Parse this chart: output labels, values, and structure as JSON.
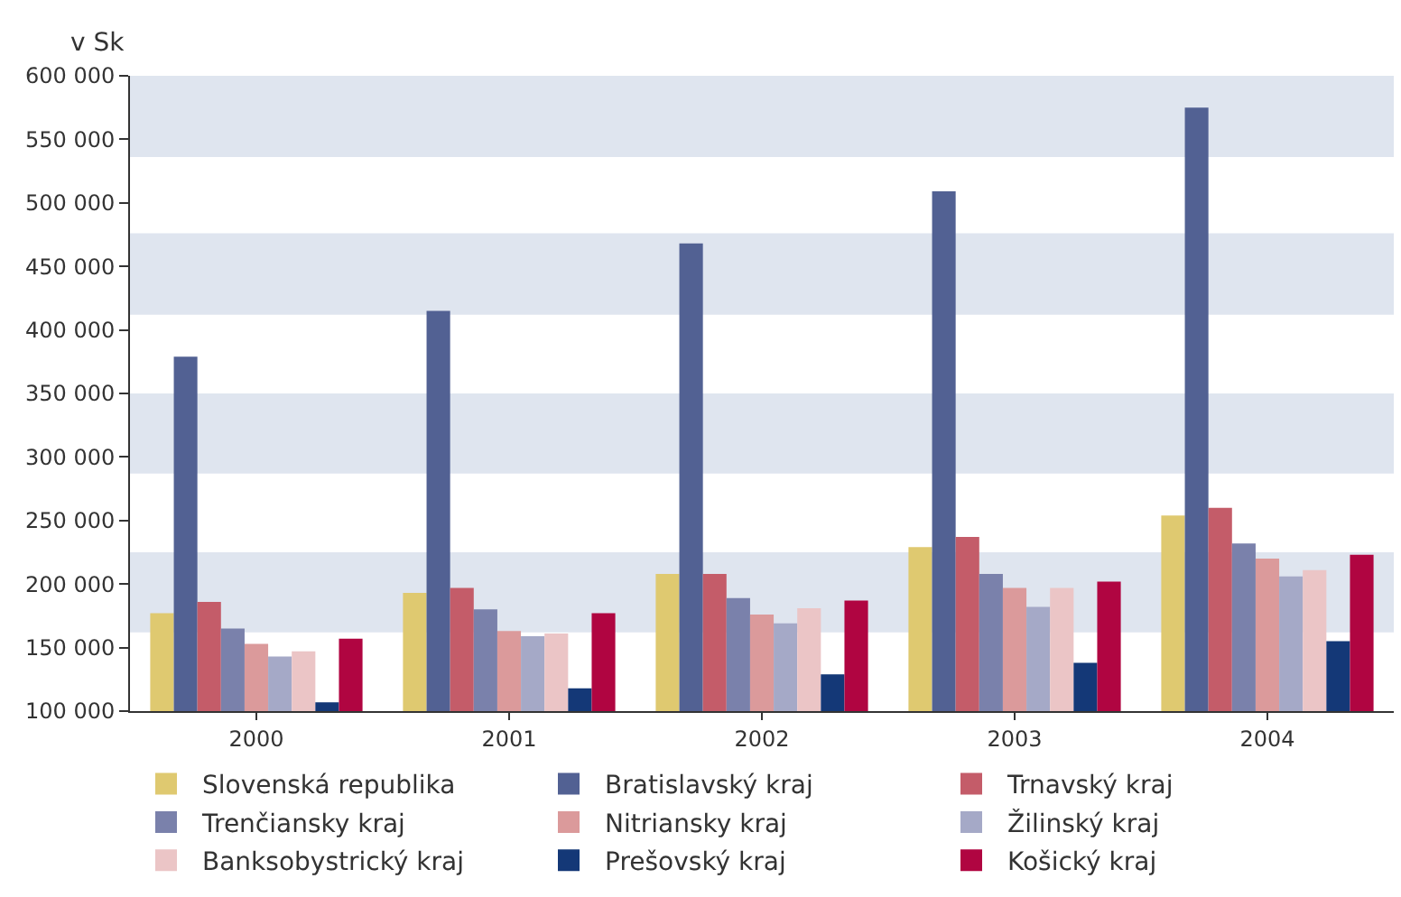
{
  "chart_data": {
    "type": "bar",
    "ylabel": "v Sk",
    "categories": [
      "2000",
      "2001",
      "2002",
      "2003",
      "2004"
    ],
    "series": [
      {
        "name": "Slovenská republika",
        "color": "#dfc970",
        "values": [
          177000,
          193000,
          208000,
          229000,
          254000
        ]
      },
      {
        "name": "Bratislavský kraj",
        "color": "#526193",
        "values": [
          379000,
          415000,
          468000,
          509000,
          575000
        ]
      },
      {
        "name": "Trnavský kraj",
        "color": "#c45c69",
        "values": [
          186000,
          197000,
          208000,
          237000,
          260000
        ]
      },
      {
        "name": "Trenčiansky kraj",
        "color": "#7a81ab",
        "values": [
          165000,
          180000,
          189000,
          208000,
          232000
        ]
      },
      {
        "name": "Nitriansky kraj",
        "color": "#db9a9b",
        "values": [
          153000,
          163000,
          176000,
          197000,
          220000
        ]
      },
      {
        "name": "Žilinský kraj",
        "color": "#a5a9c7",
        "values": [
          143000,
          159000,
          169000,
          182000,
          206000
        ]
      },
      {
        "name": "Banksobystrický kraj",
        "color": "#ebc5c6",
        "values": [
          147000,
          161000,
          181000,
          197000,
          211000
        ]
      },
      {
        "name": "Prešovský kraj",
        "color": "#143877",
        "values": [
          107000,
          118000,
          129000,
          138000,
          155000
        ]
      },
      {
        "name": "Košický kraj",
        "color": "#b00541",
        "values": [
          157000,
          177000,
          187000,
          202000,
          223000
        ]
      }
    ],
    "ylim": [
      100000,
      600000
    ],
    "yticks": [
      {
        "value": 100000,
        "label": "100 000"
      },
      {
        "value": 150000,
        "label": "150 000"
      },
      {
        "value": 200000,
        "label": "200 000"
      },
      {
        "value": 250000,
        "label": "250 000"
      },
      {
        "value": 300000,
        "label": "300 000"
      },
      {
        "value": 350000,
        "label": "350 000"
      },
      {
        "value": 400000,
        "label": "400 000"
      },
      {
        "value": 450000,
        "label": "450 000"
      },
      {
        "value": 500000,
        "label": "500 000"
      },
      {
        "value": 550000,
        "label": "550 000"
      },
      {
        "value": 600000,
        "label": "600 000"
      }
    ],
    "bands": [
      {
        "axis": "y",
        "from": 162000,
        "to": 225000,
        "color": "#dfe5ef"
      },
      {
        "axis": "y",
        "from": 287000,
        "to": 350000,
        "color": "#dfe5ef"
      },
      {
        "axis": "y",
        "from": 412000,
        "to": 476000,
        "color": "#dfe5ef"
      },
      {
        "axis": "y",
        "from": 536000,
        "to": 600000,
        "color": "#dfe5ef"
      }
    ],
    "grid": false,
    "legend": "bottom"
  }
}
